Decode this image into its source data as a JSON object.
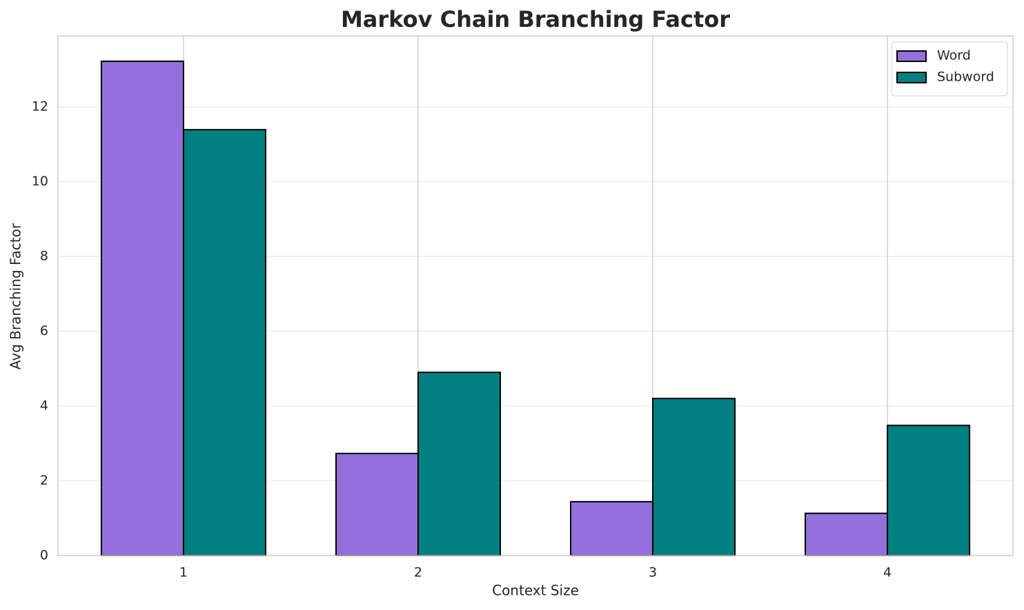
{
  "chart_data": {
    "type": "bar",
    "title": "Markov Chain Branching Factor",
    "x_label": "Context Size",
    "y_label": "Avg Branching Factor",
    "categories": [
      "1",
      "2",
      "3",
      "4"
    ],
    "series": [
      {
        "name": "Word",
        "color": "#9370db",
        "values": [
          13.22,
          2.73,
          1.44,
          1.13
        ]
      },
      {
        "name": "Subword",
        "color": "#008080",
        "values": [
          11.39,
          4.9,
          4.2,
          3.48
        ]
      }
    ],
    "ylim": [
      0,
      13.9
    ],
    "yticks": [
      0,
      2,
      4,
      6,
      8,
      10,
      12
    ],
    "grid": true,
    "legend": "upper right"
  }
}
